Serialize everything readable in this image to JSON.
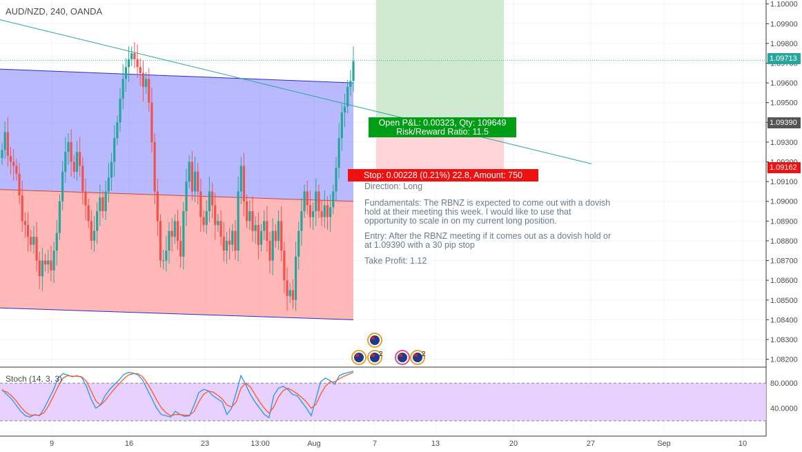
{
  "header": {
    "symbol_title": "AUD/NZD, 240, OANDA"
  },
  "indicator": {
    "title": "Stoch (14, 3, 3)"
  },
  "position": {
    "pnl_line1": "Open P&L: 0.00323, Qty: 109649",
    "pnl_line2": "Risk/Reward Ratio: 11.5",
    "stop_label": "Stop: 0.00228 (0.21%) 22.8, Amount: 750"
  },
  "notes": {
    "direction": "Direction: Long",
    "fundamentals": "Fundamentals: The RBNZ is expected to come out with a dovish\nhold at their meeting this week. I would like to use that\nopportunity to scale in on my current long position.",
    "entry": "Entry: After the RBNZ meeting if it comes out as a dovish hold or\nat 1.09390 with a 30 pip stop",
    "take_profit": "Take Profit: 1.12"
  },
  "price_tags": {
    "last": "1.09713",
    "entry": "1.09390",
    "stop": "1.09162"
  },
  "event_badges": {
    "count_a": "2",
    "count_b": "2"
  },
  "colors": {
    "up": "#26a69a",
    "down": "#ef5350",
    "channel_upper": "#8a8aff",
    "channel_lower": "#ff9a9a",
    "profit_zone": "#c8e6c9",
    "loss_zone": "#ffcdd2",
    "trend_line": "#26a69a",
    "stoch_k": "#2196f3",
    "stoch_d": "#ff5722",
    "stoch_band": "#e6ccff"
  },
  "chart_data": [
    {
      "type": "candlestick",
      "title": "AUD/NZD, 240, OANDA",
      "x_tick_labels": [
        "9",
        "16",
        "23",
        "13:00",
        "Aug",
        "7",
        "13",
        "20",
        "27",
        "Sep",
        "10"
      ],
      "ylim": [
        1.0816,
        1.1002
      ],
      "y_tick_labels": [
        "1.10000",
        "1.09900",
        "1.09800",
        "1.09700",
        "1.09600",
        "1.09500",
        "1.09400",
        "1.09300",
        "1.09200",
        "1.09100",
        "1.09000",
        "1.08900",
        "1.08800",
        "1.08700",
        "1.08600",
        "1.08500",
        "1.08400",
        "1.08300",
        "1.08200"
      ],
      "y_ticks": [
        1.1,
        1.099,
        1.098,
        1.097,
        1.096,
        1.095,
        1.094,
        1.093,
        1.092,
        1.091,
        1.09,
        1.089,
        1.088,
        1.087,
        1.086,
        1.085,
        1.084,
        1.083,
        1.082
      ],
      "closes": [
        1.0926,
        1.0935,
        1.0923,
        1.092,
        1.0918,
        1.0914,
        1.0903,
        1.089,
        1.0888,
        1.0882,
        1.0878,
        1.0882,
        1.087,
        1.0862,
        1.087,
        1.0868,
        1.087,
        1.0865,
        1.0875,
        1.0884,
        1.09,
        1.0915,
        1.0925,
        1.093,
        1.092,
        1.0915,
        1.0925,
        1.0918,
        1.0905,
        1.0898,
        1.089,
        1.088,
        1.0885,
        1.0895,
        1.0902,
        1.0895,
        1.0905,
        1.0912,
        1.092,
        1.0932,
        1.094,
        1.0952,
        1.0962,
        1.0968,
        1.0972,
        1.0975,
        1.0972,
        1.0968,
        1.0965,
        1.0958,
        1.0962,
        1.095,
        1.093,
        1.0905,
        1.089,
        1.087,
        1.087,
        1.0875,
        1.0885,
        1.0882,
        1.089,
        1.088,
        1.0872,
        1.0895,
        1.091,
        1.092,
        1.0905,
        1.0915,
        1.0905,
        1.0892,
        1.0888,
        1.0895,
        1.0905,
        1.0898,
        1.0888,
        1.089,
        1.0882,
        1.0875,
        1.088,
        1.0878,
        1.0885,
        1.0875,
        1.0905,
        1.0918,
        1.09,
        1.089,
        1.0895,
        1.0885,
        1.0888,
        1.0878,
        1.0885,
        1.089,
        1.088,
        1.087,
        1.0885,
        1.088,
        1.089,
        1.0875,
        1.086,
        1.0852,
        1.0855,
        1.085,
        1.0872,
        1.0885,
        1.0895,
        1.0905,
        1.0898,
        1.0892,
        1.0895,
        1.0905,
        1.0895,
        1.0892,
        1.0898,
        1.0892,
        1.0897,
        1.0905,
        1.0917,
        1.0932,
        1.0945,
        1.0948,
        1.0958,
        1.0961,
        1.0971
      ],
      "price_levels": {
        "last": 1.09713,
        "entry": 1.0939,
        "stop": 1.09162,
        "take_profit": 1.12
      },
      "channel": {
        "upper_line": {
          "start": 1.0967,
          "end": 1.096
        },
        "middle_line": {
          "start": 1.0906,
          "end": 1.09
        },
        "lower_line": {
          "start": 1.0846,
          "end": 1.084
        }
      },
      "trend_line": {
        "start": 1.0992,
        "end": 1.0919
      }
    },
    {
      "type": "line",
      "title": "Stoch (14, 3, 3)",
      "ylim": [
        0,
        100
      ],
      "y_ticks": [
        80,
        40
      ],
      "y_tick_labels": [
        "80.0000",
        "40.0000"
      ],
      "band": [
        20,
        80
      ],
      "series": [
        {
          "values": [
            70,
            62,
            55,
            45,
            35,
            28,
            26,
            30,
            28,
            40,
            55,
            70,
            88,
            95,
            93,
            90,
            92,
            89,
            75,
            55,
            40,
            45,
            60,
            70,
            78,
            85,
            94,
            97,
            96,
            93,
            85,
            70,
            55,
            40,
            30,
            28,
            26,
            35,
            30,
            27,
            28,
            45,
            65,
            70,
            68,
            60,
            55,
            50,
            30,
            40,
            65,
            92,
            78,
            62,
            50,
            40,
            30,
            25,
            60,
            72,
            75,
            70,
            62,
            60,
            50,
            40,
            28,
            55,
            82,
            88,
            84,
            78,
            92,
            95,
            97,
            99
          ]
        },
        {
          "values": [
            68,
            66,
            60,
            52,
            42,
            34,
            29,
            29,
            29,
            33,
            45,
            60,
            75,
            88,
            92,
            91,
            91,
            90,
            83,
            68,
            52,
            45,
            52,
            62,
            71,
            79,
            87,
            93,
            95,
            95,
            90,
            80,
            67,
            53,
            41,
            33,
            28,
            30,
            30,
            29,
            29,
            35,
            50,
            62,
            67,
            66,
            61,
            55,
            45,
            42,
            50,
            72,
            80,
            74,
            62,
            50,
            40,
            32,
            42,
            58,
            68,
            72,
            68,
            63,
            57,
            50,
            40,
            46,
            62,
            75,
            82,
            82,
            87,
            91,
            94,
            97
          ]
        }
      ]
    }
  ]
}
